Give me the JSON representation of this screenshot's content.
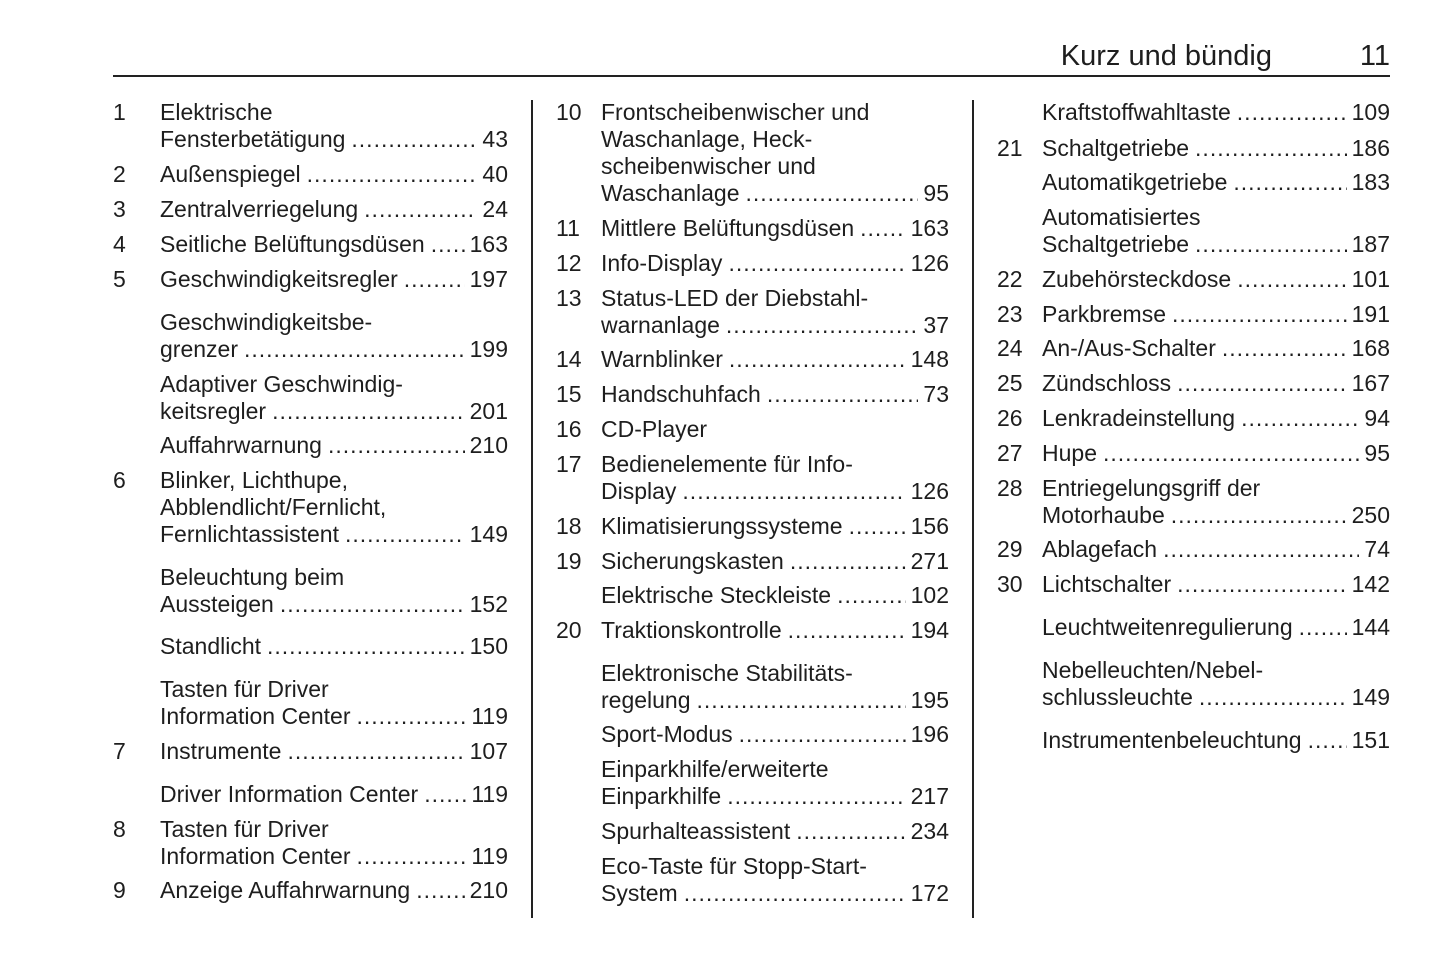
{
  "header": {
    "title": "Kurz und bündig",
    "page_number": "11"
  },
  "columns": [
    {
      "entries": [
        {
          "num": "1",
          "lines": [
            "Elektrische",
            "Fensterbetätigung"
          ],
          "page": "43"
        },
        {
          "num": "2",
          "lines": [
            "Außenspiegel"
          ],
          "page": "40"
        },
        {
          "num": "3",
          "lines": [
            "Zentralverriegelung"
          ],
          "page": "24"
        },
        {
          "num": "4",
          "lines": [
            "Seitliche Belüftungsdüsen"
          ],
          "page": "163"
        },
        {
          "num": "5",
          "lines": [
            "Geschwindigkeitsregler"
          ],
          "page": "197"
        },
        {
          "num": "",
          "lines": [
            "Geschwindigkeitsbe-",
            "grenzer"
          ],
          "page": "199"
        },
        {
          "num": "",
          "lines": [
            "Adaptiver Geschwindig-",
            "keitsregler"
          ],
          "page": "201"
        },
        {
          "num": "",
          "lines": [
            "Auffahrwarnung"
          ],
          "page": "210"
        },
        {
          "num": "6",
          "lines": [
            "Blinker, Lichthupe,",
            "Abblendlicht/Fernlicht,",
            "Fernlichtassistent"
          ],
          "page": "149"
        },
        {
          "num": "",
          "lines": [
            "Beleuchtung beim",
            "Aussteigen"
          ],
          "page": "152"
        },
        {
          "num": "",
          "lines": [
            "Standlicht"
          ],
          "page": "150"
        },
        {
          "num": "",
          "lines": [
            "Tasten für Driver",
            "Information Center"
          ],
          "page": "119"
        },
        {
          "num": "7",
          "lines": [
            "Instrumente"
          ],
          "page": "107"
        },
        {
          "num": "",
          "lines": [
            "Driver Information Center"
          ],
          "page": "119"
        },
        {
          "num": "8",
          "lines": [
            "Tasten für Driver",
            "Information Center"
          ],
          "page": "119"
        },
        {
          "num": "9",
          "lines": [
            "Anzeige Auffahrwarnung"
          ],
          "page": "210"
        }
      ]
    },
    {
      "entries": [
        {
          "num": "10",
          "lines": [
            "Frontscheibenwischer und",
            "Waschanlage, Heck-",
            "scheibenwischer und",
            "Waschanlage"
          ],
          "page": "95"
        },
        {
          "num": "11",
          "lines": [
            "Mittlere Belüftungsdüsen"
          ],
          "page": "163"
        },
        {
          "num": "12",
          "lines": [
            "Info-Display"
          ],
          "page": "126"
        },
        {
          "num": "13",
          "lines": [
            "Status-LED der Diebstahl-",
            "warnanlage"
          ],
          "page": "37"
        },
        {
          "num": "14",
          "lines": [
            "Warnblinker"
          ],
          "page": "148"
        },
        {
          "num": "15",
          "lines": [
            "Handschuhfach"
          ],
          "page": "73"
        },
        {
          "num": "16",
          "lines": [
            "CD-Player"
          ],
          "page": ""
        },
        {
          "num": "17",
          "lines": [
            "Bedienelemente für Info-",
            "Display"
          ],
          "page": "126"
        },
        {
          "num": "18",
          "lines": [
            "Klimatisierungssysteme"
          ],
          "page": "156"
        },
        {
          "num": "19",
          "lines": [
            "Sicherungskasten"
          ],
          "page": "271"
        },
        {
          "num": "",
          "lines": [
            "Elektrische Steckleiste"
          ],
          "page": "102"
        },
        {
          "num": "20",
          "lines": [
            "Traktionskontrolle"
          ],
          "page": "194"
        },
        {
          "num": "",
          "lines": [
            "Elektronische Stabilitäts-",
            "regelung"
          ],
          "page": "195"
        },
        {
          "num": "",
          "lines": [
            "Sport-Modus"
          ],
          "page": "196"
        },
        {
          "num": "",
          "lines": [
            "Einparkhilfe/erweiterte",
            "Einparkhilfe"
          ],
          "page": "217"
        },
        {
          "num": "",
          "lines": [
            "Spurhalteassistent"
          ],
          "page": "234"
        },
        {
          "num": "",
          "lines": [
            "Eco-Taste für Stopp-Start-",
            "System"
          ],
          "page": "172"
        }
      ]
    },
    {
      "entries": [
        {
          "num": "",
          "lines": [
            "Kraftstoffwahltaste"
          ],
          "page": "109"
        },
        {
          "num": "21",
          "lines": [
            "Schaltgetriebe"
          ],
          "page": "186"
        },
        {
          "num": "",
          "lines": [
            "Automatikgetriebe"
          ],
          "page": "183"
        },
        {
          "num": "",
          "lines": [
            "Automatisiertes",
            "Schaltgetriebe"
          ],
          "page": "187"
        },
        {
          "num": "22",
          "lines": [
            "Zubehörsteckdose"
          ],
          "page": "101"
        },
        {
          "num": "23",
          "lines": [
            "Parkbremse"
          ],
          "page": "191"
        },
        {
          "num": "24",
          "lines": [
            "An-/Aus-Schalter"
          ],
          "page": "168"
        },
        {
          "num": "25",
          "lines": [
            "Zündschloss"
          ],
          "page": "167"
        },
        {
          "num": "26",
          "lines": [
            "Lenkradeinstellung"
          ],
          "page": "94"
        },
        {
          "num": "27",
          "lines": [
            "Hupe"
          ],
          "page": "95"
        },
        {
          "num": "28",
          "lines": [
            "Entriegelungsgriff der",
            "Motorhaube"
          ],
          "page": "250"
        },
        {
          "num": "29",
          "lines": [
            "Ablagefach"
          ],
          "page": "74"
        },
        {
          "num": "30",
          "lines": [
            "Lichtschalter"
          ],
          "page": "142"
        },
        {
          "num": "",
          "lines": [
            "Leuchtweitenregulierung"
          ],
          "page": "144"
        },
        {
          "num": "",
          "lines": [
            "Nebelleuchten/Nebel-",
            "schlussleuchte"
          ],
          "page": "149"
        },
        {
          "num": "",
          "lines": [
            "Instrumentenbeleuchtung"
          ],
          "page": "151"
        }
      ]
    }
  ]
}
